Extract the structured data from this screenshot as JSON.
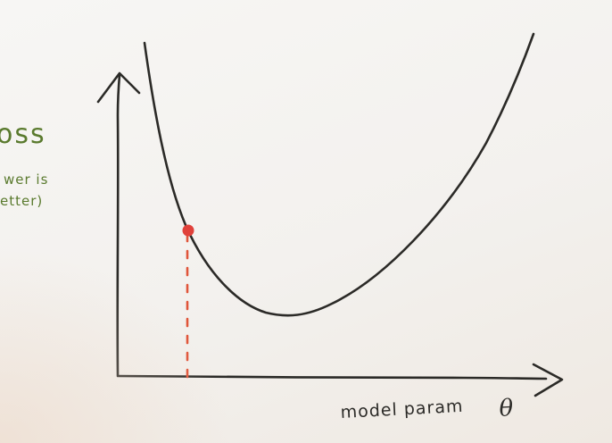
{
  "labels": {
    "y_axis_word": "oss",
    "note_line_1": "wer is",
    "note_line_2": "etter)",
    "x_axis_label": "model param",
    "x_axis_symbol": "θ"
  },
  "colors": {
    "ink": "#2b2a27",
    "highlight": "#e0413a",
    "guide": "#e0553a",
    "marker_ink": "#5a7a2e"
  }
}
